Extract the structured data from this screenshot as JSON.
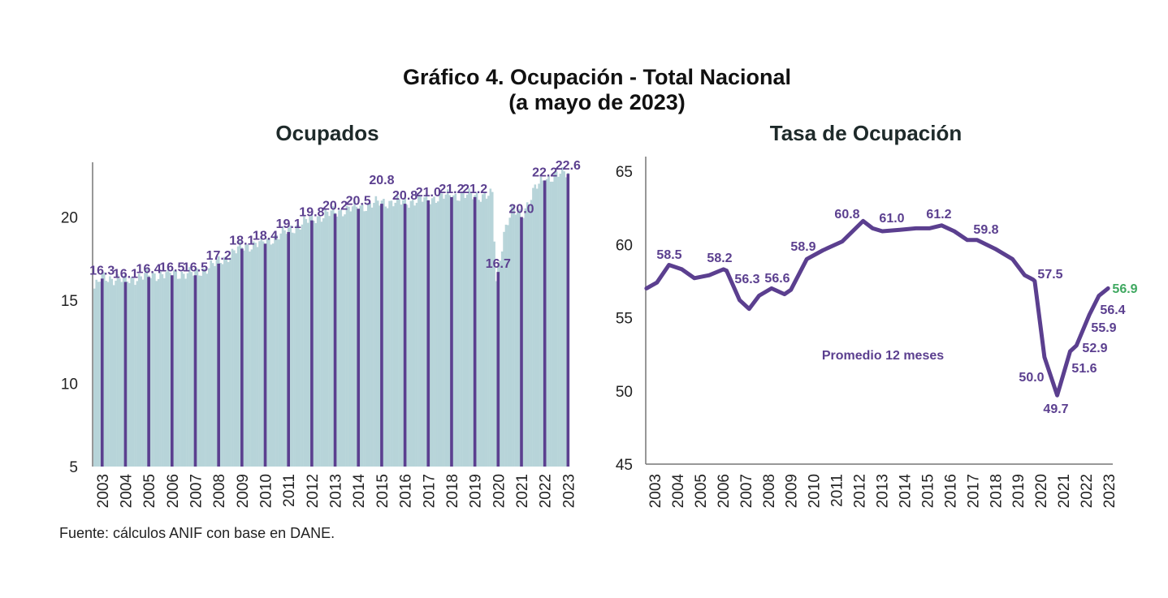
{
  "title": "Gráfico 4. Ocupación - Total Nacional",
  "subtitle": "(a mayo de 2023)",
  "source": "Fuente: cálculos ANIF con base en DANE.",
  "colors": {
    "bar_monthly": "#b7d4d9",
    "bar_annual": "#5b3f8f",
    "line": "#5b3f8f",
    "last_label": "#3fa860"
  },
  "chart_data": [
    {
      "type": "bar",
      "title": "Ocupados",
      "xlabel": "",
      "ylabel": "",
      "ylim": [
        5,
        23
      ],
      "yticks": [
        5,
        10,
        15,
        20
      ],
      "categories": [
        "2003",
        "2004",
        "2005",
        "2006",
        "2007",
        "2008",
        "2009",
        "2010",
        "2011",
        "2012",
        "2013",
        "2014",
        "2015",
        "2016",
        "2017",
        "2018",
        "2019",
        "2020",
        "2021",
        "2022",
        "2023"
      ],
      "values": [
        16.3,
        16.1,
        16.4,
        16.5,
        16.5,
        17.2,
        18.1,
        18.4,
        19.1,
        19.8,
        20.2,
        20.5,
        20.8,
        20.8,
        21.0,
        21.2,
        21.2,
        16.7,
        20.0,
        22.2,
        22.6
      ],
      "data_labels": [
        "16.3",
        "16.1",
        "16.4",
        "16.5",
        "16.5",
        "17.2",
        "18.1",
        "18.4",
        "19.1",
        "19.8",
        "20.2",
        "20.5",
        "20.8",
        "20.8",
        "21.0",
        "21.2",
        "21.2",
        "16.7",
        "20.0",
        "22.2",
        "22.6"
      ],
      "monthly_background": [
        [
          "2003-01",
          15.6
        ],
        [
          "2003-05",
          16.3
        ],
        [
          "2004-05",
          16.1
        ],
        [
          "2005-05",
          16.4
        ],
        [
          "2006-05",
          16.5
        ],
        [
          "2007-05",
          16.5
        ],
        [
          "2008-05",
          17.2
        ],
        [
          "2009-05",
          18.1
        ],
        [
          "2010-05",
          18.4
        ],
        [
          "2011-05",
          19.1
        ],
        [
          "2012-05",
          19.8
        ],
        [
          "2013-05",
          20.2
        ],
        [
          "2014-05",
          20.5
        ],
        [
          "2015-05",
          20.8
        ],
        [
          "2016-05",
          20.8
        ],
        [
          "2017-05",
          21.0
        ],
        [
          "2018-05",
          21.2
        ],
        [
          "2019-05",
          21.2
        ],
        [
          "2020-02",
          21.2
        ],
        [
          "2020-04",
          16.0
        ],
        [
          "2020-05",
          16.7
        ],
        [
          "2020-08",
          19.0
        ],
        [
          "2020-12",
          20.3
        ],
        [
          "2021-05",
          20.0
        ],
        [
          "2021-12",
          21.6
        ],
        [
          "2022-05",
          22.2
        ],
        [
          "2023-05",
          22.6
        ]
      ]
    },
    {
      "type": "line",
      "title": "Tasa de Ocupación",
      "xlabel": "",
      "ylabel": "",
      "ylim": [
        45,
        65
      ],
      "yticks": [
        45,
        50,
        55,
        60,
        65
      ],
      "xticks": [
        "2003",
        "2004",
        "2005",
        "2006",
        "2007",
        "2008",
        "2009",
        "2010",
        "2011",
        "2012",
        "2013",
        "2014",
        "2015",
        "2016",
        "2017",
        "2018",
        "2019",
        "2020",
        "2021",
        "2022",
        "2023"
      ],
      "series": [
        {
          "name": "Promedio 12 meses",
          "x": [
            2002.64,
            2003.1,
            2003.63,
            2004.2,
            2004.75,
            2005.4,
            2006.03,
            2006.17,
            2006.74,
            2007.16,
            2007.6,
            2008.15,
            2008.72,
            2009.0,
            2009.7,
            2010.41,
            2011.26,
            2012.18,
            2012.6,
            2013.03,
            2013.8,
            2014.51,
            2015.1,
            2015.64,
            2016.2,
            2016.77,
            2017.2,
            2018.0,
            2018.76,
            2019.3,
            2019.67,
            2019.74,
            2020.17,
            2020.73,
            2021.3,
            2021.58,
            2022.15,
            2022.57,
            2022.97
          ],
          "y": [
            57.0,
            57.4,
            58.6,
            58.3,
            57.7,
            57.9,
            58.3,
            58.2,
            56.2,
            55.6,
            56.5,
            57.0,
            56.6,
            56.9,
            59.0,
            59.6,
            60.2,
            61.6,
            61.1,
            60.9,
            61.0,
            61.1,
            61.1,
            61.3,
            60.9,
            60.3,
            60.3,
            59.7,
            59.0,
            57.9,
            57.6,
            57.5,
            52.3,
            49.7,
            52.7,
            53.1,
            55.2,
            56.5,
            57.0
          ]
        }
      ],
      "data_labels": [
        "58.5",
        "58.2",
        "56.3",
        "56.6",
        "58.9",
        "60.8",
        "61.0",
        "61.2",
        "59.8",
        "57.5",
        "50.0",
        "49.7",
        "51.6",
        "52.9",
        "55.9",
        "56.4",
        "56.9"
      ],
      "annotation": "Promedio 12 meses"
    }
  ]
}
